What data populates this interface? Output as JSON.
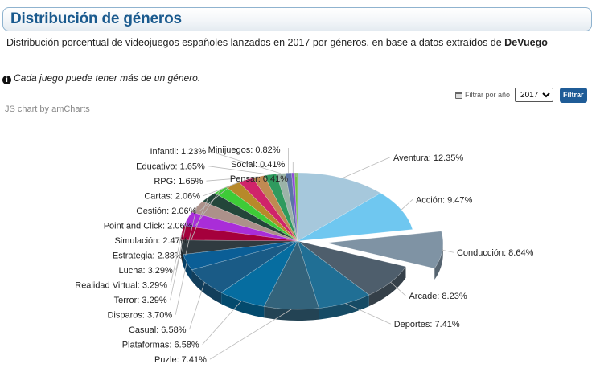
{
  "header": {
    "title": "Distribución de géneros"
  },
  "subtitle": {
    "text": "Distribución porcentual de videojuegos españoles lanzados en 2017 por géneros, en base a datos extraídos de ",
    "source": "DeVuego"
  },
  "note": {
    "text": "Cada juego puede tener más de un género."
  },
  "filter": {
    "label": "Filtrar por año",
    "selected_year": "2017",
    "button_label": "Filtrar"
  },
  "credit": "JS chart by amCharts",
  "chart_data": {
    "type": "pie",
    "style": "3d",
    "title": "",
    "pulled_out_slice": "Conducción",
    "slices": [
      {
        "name": "Aventura",
        "value": 12.35,
        "label": "Aventura: 12.35%",
        "color": "#a6c8dc"
      },
      {
        "name": "Acción",
        "value": 9.47,
        "label": "Acción: 9.47%",
        "color": "#6fc7f0"
      },
      {
        "name": "Conducción",
        "value": 8.64,
        "label": "Conducción: 8.64%",
        "color": "#7f93a4"
      },
      {
        "name": "Arcade",
        "value": 8.23,
        "label": "Arcade: 8.23%",
        "color": "#4e5e6c"
      },
      {
        "name": "Deportes",
        "value": 7.41,
        "label": "Deportes: 7.41%",
        "color": "#206f95"
      },
      {
        "name": "Puzle",
        "value": 7.41,
        "label": "Puzle: 7.41%",
        "color": "#33637b"
      },
      {
        "name": "Plataformas",
        "value": 6.58,
        "label": "Plataformas: 6.58%",
        "color": "#066da0"
      },
      {
        "name": "Casual",
        "value": 6.58,
        "label": "Casual: 6.58%",
        "color": "#1a5b86"
      },
      {
        "name": "Disparos",
        "value": 3.7,
        "label": "Disparos: 3.70%",
        "color": "#0b5e96"
      },
      {
        "name": "Terror",
        "value": 3.29,
        "label": "Terror: 3.29%",
        "color": "#303b40"
      },
      {
        "name": "Realidad Virtual",
        "value": 3.29,
        "label": "Realidad Virtual: 3.29%",
        "color": "#a5003c"
      },
      {
        "name": "Lucha",
        "value": 3.29,
        "label": "Lucha: 3.29%",
        "color": "#a92dd8"
      },
      {
        "name": "Estrategia",
        "value": 2.88,
        "label": "Estrategia: 2.88%",
        "color": "#ac918a"
      },
      {
        "name": "Simulación",
        "value": 2.47,
        "label": "Simulación: 2.47%",
        "color": "#23463a"
      },
      {
        "name": "Point and Click",
        "value": 2.06,
        "label": "Point and Click: 2.06%",
        "color": "#3ecb37"
      },
      {
        "name": "Gestión",
        "value": 2.06,
        "label": "Gestión: 2.06%",
        "color": "#b7892a"
      },
      {
        "name": "Cartas",
        "value": 2.06,
        "label": "Cartas: 2.06%",
        "color": "#d0246a"
      },
      {
        "name": "RPG",
        "value": 1.65,
        "label": "RPG: 1.65%",
        "color": "#c08a52"
      },
      {
        "name": "Educativo",
        "value": 1.65,
        "label": "Educativo: 1.65%",
        "color": "#2f9a5e"
      },
      {
        "name": "Infantil",
        "value": 1.23,
        "label": "Infantil: 1.23%",
        "color": "#9bb3a8"
      },
      {
        "name": "Minijuegos",
        "value": 0.82,
        "label": "Minijuegos: 0.82%",
        "color": "#5b74a6"
      },
      {
        "name": "Social",
        "value": 0.41,
        "label": "Social: 0.41%",
        "color": "#8e4bd8"
      },
      {
        "name": "Pensar",
        "value": 0.41,
        "label": "Pensar: 0.41%",
        "color": "#6fbf4a"
      }
    ]
  }
}
